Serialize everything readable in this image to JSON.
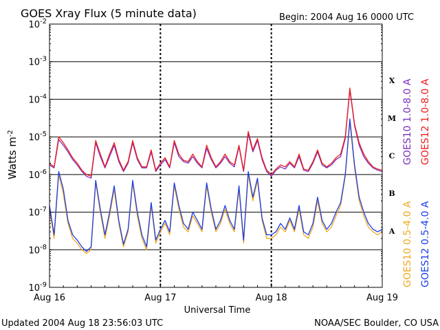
{
  "title": "GOES Xray Flux (5 minute data)",
  "begin_label": "Begin:  2004 Aug 16 0000 UTC",
  "footer_left": "Updated 2004 Aug 18 23:56:03 UTC",
  "footer_right": "NOAA/SEC Boulder, CO USA",
  "chart_data": {
    "type": "line",
    "title": "GOES Xray Flux (5 minute data)",
    "xlabel": "Universal Time",
    "ylabel": "Watts m",
    "ylabel_superscript": "-2",
    "y_scale": "log",
    "ylim": [
      1e-09,
      0.01
    ],
    "xlim": [
      0,
      72
    ],
    "x_unit": "hours since 2004 Aug 16 00:00 UTC",
    "x_ticks": [
      {
        "value": 0,
        "label": "Aug 16"
      },
      {
        "value": 24,
        "label": "Aug 17"
      },
      {
        "value": 48,
        "label": "Aug 18"
      },
      {
        "value": 72,
        "label": "Aug 19"
      }
    ],
    "y_ticks": [
      {
        "value": 0.01,
        "base": "10",
        "exp": "-2"
      },
      {
        "value": 0.001,
        "base": "10",
        "exp": "-3"
      },
      {
        "value": 0.0001,
        "base": "10",
        "exp": "-4"
      },
      {
        "value": 1e-05,
        "base": "10",
        "exp": "-5"
      },
      {
        "value": 1e-06,
        "base": "10",
        "exp": "-6"
      },
      {
        "value": 1e-07,
        "base": "10",
        "exp": "-7"
      },
      {
        "value": 1e-08,
        "base": "10",
        "exp": "-8"
      },
      {
        "value": 1e-09,
        "base": "10",
        "exp": "-9"
      }
    ],
    "flare_classes": [
      {
        "label": "X",
        "value": 0.000316
      },
      {
        "label": "M",
        "value": 3.16e-05
      },
      {
        "label": "C",
        "value": 3.16e-06
      },
      {
        "label": "B",
        "value": 3.16e-07
      },
      {
        "label": "A",
        "value": 3.16e-08
      }
    ],
    "grid": "horizontal lines at each decade; dashed vertical lines at day boundaries",
    "legend_placement": "right (vertical text)",
    "series": [
      {
        "name": "GOES10 1.0-8.0 A",
        "color": "#7a2fbd",
        "x": [
          0,
          1,
          2,
          3,
          4,
          5,
          6,
          7,
          8,
          9,
          10,
          11,
          12,
          13,
          14,
          15,
          16,
          17,
          18,
          19,
          20,
          21,
          22,
          23,
          24,
          25,
          26,
          27,
          28,
          29,
          30,
          31,
          32,
          33,
          34,
          35,
          36,
          37,
          38,
          39,
          40,
          41,
          42,
          43,
          44,
          45,
          46,
          47,
          48,
          49,
          50,
          51,
          52,
          53,
          54,
          55,
          56,
          57,
          58,
          59,
          60,
          61,
          62,
          63,
          64,
          65,
          66,
          67,
          68,
          69,
          70,
          71,
          72
        ],
        "y": [
          1.8e-06,
          1.5e-06,
          8.5e-06,
          6e-06,
          4e-06,
          2.5e-06,
          1.8e-06,
          1.2e-06,
          9e-07,
          8e-07,
          7e-06,
          3e-06,
          1.5e-06,
          3e-06,
          6e-06,
          2.2e-06,
          1.2e-06,
          2e-06,
          7e-06,
          2.5e-06,
          1.5e-06,
          1.5e-06,
          4e-06,
          1.2e-06,
          1.8e-06,
          2.5e-06,
          1.5e-06,
          7e-06,
          3e-06,
          2.2e-06,
          2e-06,
          3e-06,
          2e-06,
          1.5e-06,
          5e-06,
          2.5e-06,
          1.5e-06,
          2e-06,
          3e-06,
          2e-06,
          1.6e-06,
          5.5e-06,
          1.2e-06,
          1.2e-05,
          4e-06,
          8e-06,
          2.5e-06,
          1.2e-06,
          9e-07,
          1.3e-06,
          1.6e-06,
          1.4e-06,
          2e-06,
          1.5e-06,
          3e-06,
          1.3e-06,
          1.2e-06,
          2e-06,
          4e-06,
          1.8e-06,
          1.5e-06,
          1.8e-06,
          2.5e-06,
          3e-06,
          9e-06,
          0.00018,
          2e-05,
          6e-06,
          3e-06,
          2e-06,
          1.5e-06,
          1.3e-06,
          1.2e-06
        ]
      },
      {
        "name": "GOES12 1.0-8.0 A",
        "color": "#ee1c1c",
        "x": [
          0,
          1,
          2,
          3,
          4,
          5,
          6,
          7,
          8,
          9,
          10,
          11,
          12,
          13,
          14,
          15,
          16,
          17,
          18,
          19,
          20,
          21,
          22,
          23,
          24,
          25,
          26,
          27,
          28,
          29,
          30,
          31,
          32,
          33,
          34,
          35,
          36,
          37,
          38,
          39,
          40,
          41,
          42,
          43,
          44,
          45,
          46,
          47,
          48,
          49,
          50,
          51,
          52,
          53,
          54,
          55,
          56,
          57,
          58,
          59,
          60,
          61,
          62,
          63,
          64,
          65,
          66,
          67,
          68,
          69,
          70,
          71,
          72
        ],
        "y": [
          2e-06,
          1.6e-06,
          1e-05,
          7e-06,
          4.5e-06,
          2.8e-06,
          2e-06,
          1.3e-06,
          1e-06,
          9e-07,
          8e-06,
          3.5e-06,
          1.6e-06,
          3.5e-06,
          7e-06,
          2.5e-06,
          1.3e-06,
          2.2e-06,
          8e-06,
          2.8e-06,
          1.6e-06,
          1.6e-06,
          4.5e-06,
          1.3e-06,
          2e-06,
          2.8e-06,
          1.6e-06,
          8e-06,
          3.5e-06,
          2.4e-06,
          2.2e-06,
          3.5e-06,
          2.2e-06,
          1.6e-06,
          6e-06,
          2.8e-06,
          1.6e-06,
          2.2e-06,
          3.5e-06,
          2.2e-06,
          1.8e-06,
          6e-06,
          1.3e-06,
          1.4e-05,
          4.5e-06,
          9e-06,
          2.8e-06,
          1.3e-06,
          1e-06,
          1.4e-06,
          1.8e-06,
          1.6e-06,
          2.2e-06,
          1.6e-06,
          3.5e-06,
          1.4e-06,
          1.3e-06,
          2.2e-06,
          4.5e-06,
          2e-06,
          1.6e-06,
          2e-06,
          2.8e-06,
          3.5e-06,
          1e-05,
          0.0002,
          2.2e-05,
          7e-06,
          3.5e-06,
          2.2e-06,
          1.6e-06,
          1.4e-06,
          1.3e-06
        ]
      },
      {
        "name": "GOES10 0.5-4.0 A",
        "color": "#f0a820",
        "x": [
          0,
          1,
          2,
          3,
          4,
          5,
          6,
          7,
          8,
          9,
          10,
          11,
          12,
          13,
          14,
          15,
          16,
          17,
          18,
          19,
          20,
          21,
          22,
          23,
          24,
          25,
          26,
          27,
          28,
          29,
          30,
          31,
          32,
          33,
          34,
          35,
          36,
          37,
          38,
          39,
          40,
          41,
          42,
          43,
          44,
          45,
          46,
          47,
          48,
          49,
          50,
          51,
          52,
          53,
          54,
          55,
          56,
          57,
          58,
          59,
          60,
          61,
          62,
          63,
          64,
          65,
          66,
          67,
          68,
          69,
          70,
          71,
          72
        ],
        "y": [
          1.2e-07,
          2e-08,
          1e-06,
          3e-07,
          5e-08,
          2e-08,
          1.5e-08,
          1e-08,
          8e-09,
          1e-08,
          6e-07,
          1e-07,
          2e-08,
          8e-08,
          4e-07,
          5e-08,
          1.2e-08,
          3e-08,
          6e-07,
          8e-08,
          2e-08,
          1e-08,
          1.5e-07,
          1.5e-08,
          3e-08,
          5e-08,
          2.5e-08,
          5e-07,
          1.2e-07,
          4e-08,
          3e-08,
          8e-08,
          5e-08,
          3e-08,
          5e-07,
          1e-07,
          3e-08,
          5e-08,
          1.2e-07,
          5e-08,
          3e-08,
          4e-07,
          1.5e-08,
          1e-06,
          2e-07,
          7e-07,
          6e-08,
          2e-08,
          2e-08,
          2.5e-08,
          4e-08,
          3e-08,
          6e-08,
          3e-08,
          1.2e-07,
          2.5e-08,
          2e-08,
          4e-08,
          2e-07,
          5e-08,
          3e-08,
          4e-08,
          8e-08,
          1.5e-07,
          9e-07,
          2.5e-05,
          1.5e-06,
          2e-07,
          8e-08,
          4e-08,
          3e-08,
          2.5e-08,
          3e-08
        ]
      },
      {
        "name": "GOES12 0.5-4.0 A",
        "color": "#1a3ce8",
        "x": [
          0,
          1,
          2,
          3,
          4,
          5,
          6,
          7,
          8,
          9,
          10,
          11,
          12,
          13,
          14,
          15,
          16,
          17,
          18,
          19,
          20,
          21,
          22,
          23,
          24,
          25,
          26,
          27,
          28,
          29,
          30,
          31,
          32,
          33,
          34,
          35,
          36,
          37,
          38,
          39,
          40,
          41,
          42,
          43,
          44,
          45,
          46,
          47,
          48,
          49,
          50,
          51,
          52,
          53,
          54,
          55,
          56,
          57,
          58,
          59,
          60,
          61,
          62,
          63,
          64,
          65,
          66,
          67,
          68,
          69,
          70,
          71,
          72
        ],
        "y": [
          1.5e-07,
          2.5e-08,
          1.2e-06,
          4e-07,
          6e-08,
          2.5e-08,
          1.8e-08,
          1.2e-08,
          9e-09,
          1.2e-08,
          7e-07,
          1.2e-07,
          2.5e-08,
          1e-07,
          5e-07,
          6e-08,
          1.4e-08,
          3.5e-08,
          7e-07,
          1e-07,
          2.5e-08,
          1.2e-08,
          1.8e-07,
          1.8e-08,
          3.5e-08,
          6e-08,
          3e-08,
          6e-07,
          1.5e-07,
          5e-08,
          3.5e-08,
          1e-07,
          6e-08,
          3.5e-08,
          6e-07,
          1.2e-07,
          3.5e-08,
          6e-08,
          1.5e-07,
          6e-08,
          3.5e-08,
          5e-07,
          1.8e-08,
          1.2e-06,
          2.5e-07,
          8e-07,
          7e-08,
          2.5e-08,
          2.5e-08,
          3e-08,
          5e-08,
          3.5e-08,
          7e-08,
          3.5e-08,
          1.5e-07,
          3e-08,
          2.5e-08,
          5e-08,
          2.5e-07,
          6e-08,
          3.5e-08,
          5e-08,
          1e-07,
          1.8e-07,
          1e-06,
          3e-05,
          1.8e-06,
          2.5e-07,
          1e-07,
          5e-08,
          3.5e-08,
          3e-08,
          3.5e-08
        ]
      }
    ]
  }
}
